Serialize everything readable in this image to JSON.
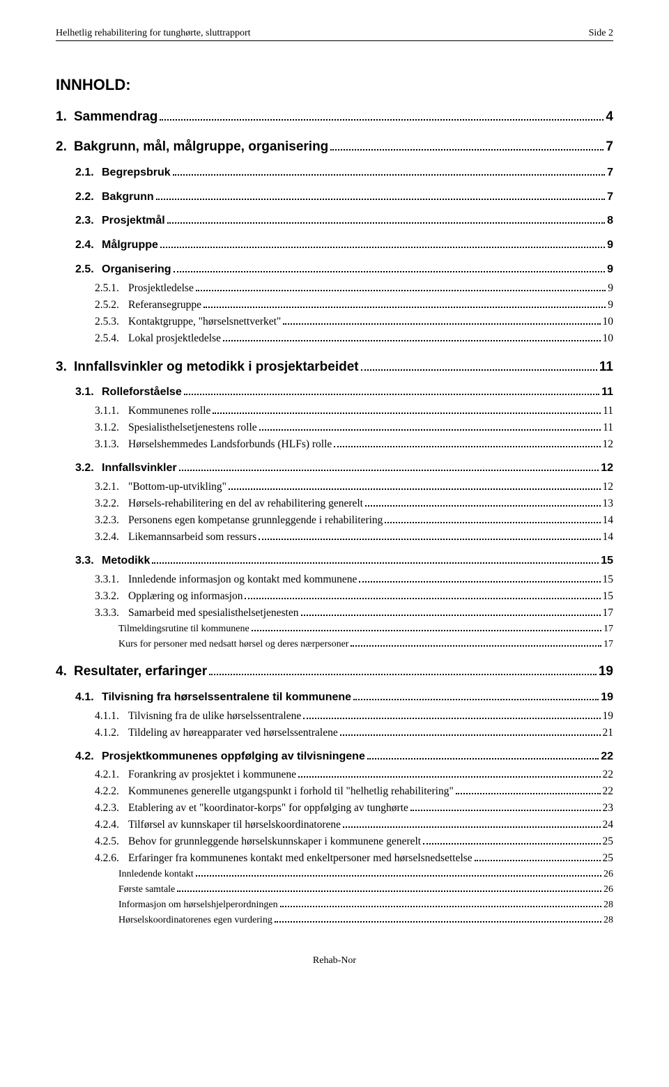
{
  "header": {
    "left": "Helhetlig rehabilitering for tunghørte,  sluttrapport",
    "right": "Side 2"
  },
  "toc_title": "INNHOLD:",
  "entries": [
    {
      "level": 1,
      "num": "1.",
      "title": "Sammendrag",
      "page": "4"
    },
    {
      "level": 1,
      "num": "2.",
      "title": "Bakgrunn, mål, målgruppe, organisering",
      "page": "7"
    },
    {
      "level": 2,
      "num": "2.1.",
      "title": "Begrepsbruk",
      "page": "7"
    },
    {
      "level": 2,
      "num": "2.2.",
      "title": "Bakgrunn",
      "page": "7"
    },
    {
      "level": 2,
      "num": "2.3.",
      "title": "Prosjektmål",
      "page": "8"
    },
    {
      "level": 2,
      "num": "2.4.",
      "title": "Målgruppe",
      "page": "9"
    },
    {
      "level": 2,
      "num": "2.5.",
      "title": "Organisering",
      "page": "9"
    },
    {
      "level": 3,
      "num": "2.5.1.",
      "title": "Prosjektledelse",
      "page": "9"
    },
    {
      "level": 3,
      "num": "2.5.2.",
      "title": "Referansegruppe",
      "page": "9"
    },
    {
      "level": 3,
      "num": "2.5.3.",
      "title": "Kontaktgruppe, \"hørselsnettverket\"",
      "page": "10"
    },
    {
      "level": 3,
      "num": "2.5.4.",
      "title": "Lokal prosjektledelse",
      "page": "10"
    },
    {
      "level": 1,
      "num": "3.",
      "title": "Innfallsvinkler og metodikk i prosjektarbeidet",
      "page": "11"
    },
    {
      "level": 2,
      "num": "3.1.",
      "title": "Rolleforståelse",
      "page": "11"
    },
    {
      "level": 3,
      "num": "3.1.1.",
      "title": "Kommunenes rolle",
      "page": "11"
    },
    {
      "level": 3,
      "num": "3.1.2.",
      "title": "Spesialisthelsetjenestens rolle",
      "page": "11"
    },
    {
      "level": 3,
      "num": "3.1.3.",
      "title": "Hørselshemmedes Landsforbunds (HLFs) rolle",
      "page": "12"
    },
    {
      "level": 2,
      "num": "3.2.",
      "title": "Innfallsvinkler",
      "page": "12"
    },
    {
      "level": 3,
      "num": "3.2.1.",
      "title": "\"Bottom-up-utvikling\"",
      "page": "12"
    },
    {
      "level": 3,
      "num": "3.2.2.",
      "title": "Hørsels-rehabilitering en del av rehabilitering generelt",
      "page": "13"
    },
    {
      "level": 3,
      "num": "3.2.3.",
      "title": "Personens egen kompetanse grunnleggende i rehabilitering",
      "page": "14"
    },
    {
      "level": 3,
      "num": "3.2.4.",
      "title": "Likemannsarbeid som ressurs",
      "page": "14"
    },
    {
      "level": 2,
      "num": "3.3.",
      "title": "Metodikk",
      "page": "15"
    },
    {
      "level": 3,
      "num": "3.3.1.",
      "title": "Innledende informasjon og kontakt med kommunene",
      "page": "15"
    },
    {
      "level": 3,
      "num": "3.3.2.",
      "title": "Opplæring og informasjon",
      "page": "15"
    },
    {
      "level": 3,
      "num": "3.3.3.",
      "title": "Samarbeid med spesialisthelsetjenesten",
      "page": "17"
    },
    {
      "level": 4,
      "num": "",
      "title": "Tilmeldingsrutine til kommunene",
      "page": "17"
    },
    {
      "level": 4,
      "num": "",
      "title": "Kurs for personer med nedsatt hørsel og deres nærpersoner",
      "page": "17"
    },
    {
      "level": 1,
      "num": "4.",
      "title": "Resultater, erfaringer",
      "page": "19"
    },
    {
      "level": 2,
      "num": "4.1.",
      "title": "Tilvisning fra hørselssentralene til kommunene",
      "page": "19"
    },
    {
      "level": 3,
      "num": "4.1.1.",
      "title": "Tilvisning fra de ulike hørselssentralene",
      "page": "19"
    },
    {
      "level": 3,
      "num": "4.1.2.",
      "title": "Tildeling av høreapparater ved hørselssentralene",
      "page": "21"
    },
    {
      "level": 2,
      "num": "4.2.",
      "title": "Prosjektkommunenes oppfølging av tilvisningene",
      "page": "22"
    },
    {
      "level": 3,
      "num": "4.2.1.",
      "title": "Forankring av prosjektet i kommunene",
      "page": "22"
    },
    {
      "level": 3,
      "num": "4.2.2.",
      "title": "Kommunenes generelle utgangspunkt i forhold til \"helhetlig rehabilitering\"",
      "page": "22"
    },
    {
      "level": 3,
      "num": "4.2.3.",
      "title": "Etablering av et \"koordinator-korps\" for oppfølging av tunghørte",
      "page": "23"
    },
    {
      "level": 3,
      "num": "4.2.4.",
      "title": "Tilførsel av kunnskaper til hørselskoordinatorene",
      "page": "24"
    },
    {
      "level": 3,
      "num": "4.2.5.",
      "title": "Behov for grunnleggende hørselskunnskaper i kommunene generelt",
      "page": "25"
    },
    {
      "level": 3,
      "num": "4.2.6.",
      "title": "Erfaringer fra kommunenes kontakt med enkeltpersoner med hørselsnedsettelse",
      "page": "25"
    },
    {
      "level": 4,
      "num": "",
      "title": "Innledende kontakt",
      "page": "26"
    },
    {
      "level": 4,
      "num": "",
      "title": "Første samtale",
      "page": "26"
    },
    {
      "level": 4,
      "num": "",
      "title": "Informasjon om hørselshjelperordningen",
      "page": "28"
    },
    {
      "level": 4,
      "num": "",
      "title": "Hørselskoordinatorenes egen vurdering",
      "page": "28"
    }
  ],
  "footer": "Rehab-Nor"
}
